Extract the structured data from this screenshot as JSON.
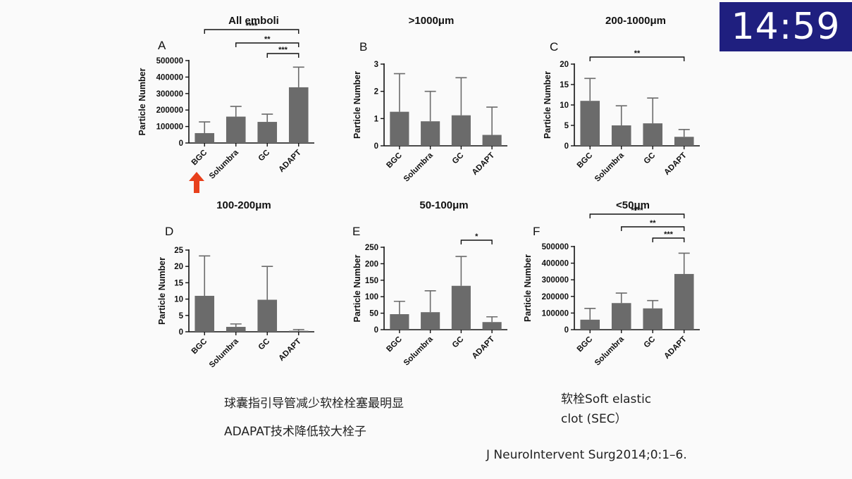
{
  "timer": "14:59",
  "notes": {
    "line1": "球囊指引导管减少软栓栓塞最明显",
    "line2": "ADAPAT技术降低较大栓子",
    "sec1": "软栓Soft elastic",
    "sec2": "clot (SEC）",
    "citation": "J NeuroIntervent Surg2014;0:1–6."
  },
  "colors": {
    "bar": "#6b6b6b",
    "arrow": "#e8401c",
    "timer_bg": "#1f1f7f"
  },
  "chart_data": [
    {
      "type": "bar",
      "letter": "A",
      "title": "All emboli",
      "ylabel": "Particle Number",
      "categories": [
        "BGC",
        "Solumbra",
        "GC",
        "ADAPT"
      ],
      "values": [
        60000,
        160000,
        128000,
        338000
      ],
      "errors": [
        128000,
        222000,
        175000,
        460000
      ],
      "ylim": [
        0,
        500000
      ],
      "yticks": [
        "0",
        "100000",
        "200000",
        "300000",
        "400000",
        "500000"
      ],
      "significance": [
        {
          "from": 2,
          "to": 3,
          "label": "***"
        },
        {
          "from": 1,
          "to": 3,
          "label": "**"
        },
        {
          "from": 0,
          "to": 3,
          "label": "****"
        }
      ]
    },
    {
      "type": "bar",
      "letter": "B",
      "title": ">1000μm",
      "ylabel": "Particle Number",
      "categories": [
        "BGC",
        "Solumbra",
        "GC",
        "ADAPT"
      ],
      "values": [
        1.25,
        0.9,
        1.12,
        0.4
      ],
      "errors": [
        2.65,
        2.0,
        2.5,
        1.42
      ],
      "ylim": [
        0,
        3
      ],
      "yticks": [
        "0",
        "1",
        "2",
        "3"
      ],
      "significance": []
    },
    {
      "type": "bar",
      "letter": "C",
      "title": "200-1000μm",
      "ylabel": "Particle Number",
      "categories": [
        "BGC",
        "Solumbra",
        "GC",
        "ADAPT"
      ],
      "values": [
        11.0,
        5.0,
        5.5,
        2.2
      ],
      "errors": [
        16.5,
        9.8,
        11.7,
        4.0
      ],
      "ylim": [
        0,
        20
      ],
      "yticks": [
        "0",
        "5",
        "10",
        "15",
        "20"
      ],
      "significance": [
        {
          "from": 0,
          "to": 3,
          "label": "**"
        }
      ]
    },
    {
      "type": "bar",
      "letter": "D",
      "title": "100-200μm",
      "ylabel": "Particle Number",
      "categories": [
        "BGC",
        "Solumbra",
        "GC",
        "ADAPT"
      ],
      "values": [
        11.0,
        1.5,
        9.8,
        0.3
      ],
      "errors": [
        23.2,
        2.4,
        20.0,
        0.7
      ],
      "ylim": [
        0,
        25
      ],
      "yticks": [
        "0",
        "5",
        "10",
        "15",
        "20",
        "25"
      ],
      "significance": []
    },
    {
      "type": "bar",
      "letter": "E",
      "title": "50-100μm",
      "ylabel": "Particle Number",
      "categories": [
        "BGC",
        "Solumbra",
        "GC",
        "ADAPT"
      ],
      "values": [
        47,
        53,
        133,
        23
      ],
      "errors": [
        86,
        118,
        222,
        39
      ],
      "ylim": [
        0,
        250
      ],
      "yticks": [
        "0",
        "50",
        "100",
        "150",
        "200",
        "250"
      ],
      "significance": [
        {
          "from": 2,
          "to": 3,
          "label": "*"
        }
      ]
    },
    {
      "type": "bar",
      "letter": "F",
      "title": "<50μm",
      "ylabel": "Particle Number",
      "categories": [
        "BGC",
        "Solumbra",
        "GC",
        "ADAPT"
      ],
      "values": [
        60000,
        160000,
        128000,
        335000
      ],
      "errors": [
        128000,
        220000,
        175000,
        460000
      ],
      "ylim": [
        0,
        500000
      ],
      "yticks": [
        "0",
        "100000",
        "200000",
        "300000",
        "400000",
        "500000"
      ],
      "significance": [
        {
          "from": 2,
          "to": 3,
          "label": "***"
        },
        {
          "from": 1,
          "to": 3,
          "label": "**"
        },
        {
          "from": 0,
          "to": 3,
          "label": "****"
        }
      ]
    }
  ]
}
